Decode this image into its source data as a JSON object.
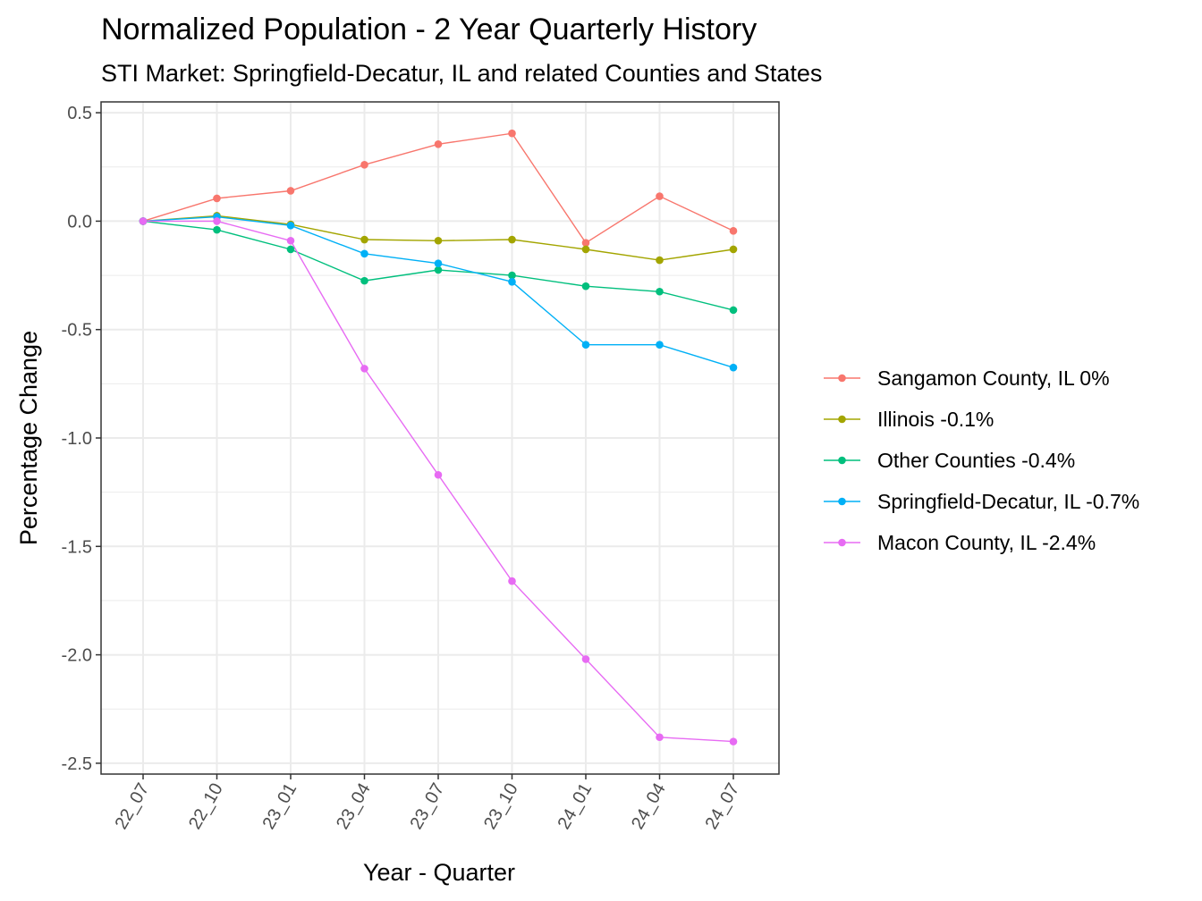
{
  "chart_data": {
    "type": "line",
    "title": "Normalized Population - 2 Year Quarterly History",
    "subtitle": "STI Market: Springfield-Decatur, IL and related Counties and States",
    "xlabel": "Year - Quarter",
    "ylabel": "Percentage Change",
    "categories": [
      "22_07",
      "22_10",
      "23_01",
      "23_04",
      "23_07",
      "23_10",
      "24_01",
      "24_04",
      "24_07"
    ],
    "ylim": [
      -2.55,
      0.55
    ],
    "yticks": [
      0.5,
      0.0,
      -0.5,
      -1.0,
      -1.5,
      -2.0,
      -2.5
    ],
    "ytick_labels": [
      "0.5",
      "0.0",
      "-0.5",
      "-1.0",
      "-1.5",
      "-2.0",
      "-2.5"
    ],
    "grid": true,
    "legend_position": "right",
    "series": [
      {
        "name": "Sangamon County, IL 0%",
        "color": "#F8766D",
        "values": [
          0.0,
          0.105,
          0.14,
          0.26,
          0.355,
          0.405,
          -0.1,
          0.115,
          -0.045
        ]
      },
      {
        "name": "Illinois -0.1%",
        "color": "#A3A500",
        "values": [
          0.0,
          0.025,
          -0.015,
          -0.085,
          -0.09,
          -0.085,
          -0.13,
          -0.18,
          -0.13
        ]
      },
      {
        "name": "Other Counties -0.4%",
        "color": "#00BF7D",
        "values": [
          0.0,
          -0.04,
          -0.13,
          -0.275,
          -0.225,
          -0.25,
          -0.3,
          -0.325,
          -0.41
        ]
      },
      {
        "name": "Springfield-Decatur, IL -0.7%",
        "color": "#00B0F6",
        "values": [
          0.0,
          0.02,
          -0.02,
          -0.15,
          -0.195,
          -0.28,
          -0.57,
          -0.57,
          -0.675
        ]
      },
      {
        "name": "Macon County, IL -2.4%",
        "color": "#E76BF3",
        "values": [
          0.0,
          0.0,
          -0.09,
          -0.68,
          -1.17,
          -1.66,
          -2.02,
          -2.38,
          -2.4
        ]
      }
    ]
  }
}
